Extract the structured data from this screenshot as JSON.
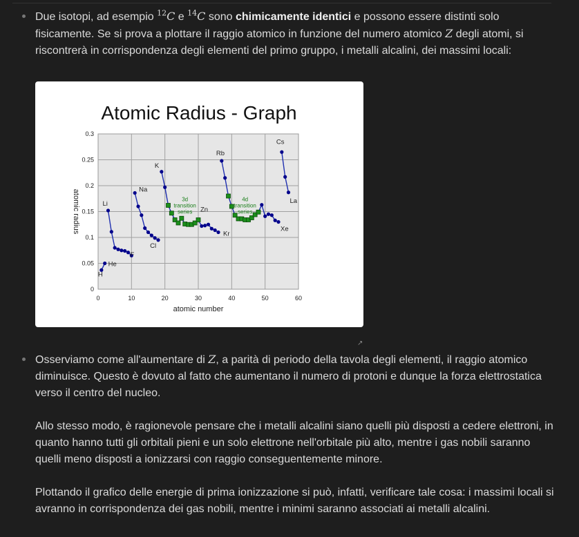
{
  "p1": {
    "t1": "Due isotopi, ad esempio ",
    "iso1_mass": "12",
    "iso1_sym": "C",
    "t2": " e ",
    "iso2_mass": "14",
    "iso2_sym": "C",
    "t3": " sono ",
    "bold": "chimicamente identici",
    "t4": " e possono essere distinti solo fisicamente. Se si prova a plottare il raggio atomico in funzione del numero atomico ",
    "z": "Z",
    "t5": " degli atomi, si riscontrerà in corrispondenza degli elementi del primo gruppo, i metalli alcalini, dei massimi locali:"
  },
  "p2": {
    "t1": "Osserviamo come all'aumentare di ",
    "z": "Z",
    "t2": ", a parità di periodo della tavola degli elementi, il raggio atomico diminuisce. Questo è dovuto al fatto che aumentano il numero di protoni e dunque la forza elettrostatica verso il centro del nucleo."
  },
  "p3": "Allo stesso modo, è ragionevole pensare che i metalli alcalini siano quelli più disposti a cedere elettroni, in quanto hanno tutti gli orbitali pieni e un solo elettrone nell'orbitale più alto, mentre i gas nobili saranno quelli meno disposti a ionizzarsi con raggio conseguentemente minore.",
  "p4": "Plottando il grafico delle energie di prima ionizzazione si può, infatti, verificare tale cosa: i massimi locali si avranno in corrispondenza dei gas nobili, mentre i minimi saranno associati ai metalli alcalini.",
  "resize_icon": "resize-corner-icon",
  "colors": {
    "background": "#1e1e1e",
    "text": "#dadada",
    "series": "#00008b",
    "transition": "#006400"
  },
  "chart_data": {
    "type": "line",
    "title": "Atomic Radius - Graph",
    "xlabel": "atomic number",
    "ylabel": "atomic radius",
    "xlim": [
      0,
      60
    ],
    "ylim": [
      0,
      0.3
    ],
    "xticks": [
      "0",
      "10",
      "20",
      "30",
      "40",
      "50",
      "60"
    ],
    "yticks": [
      "0",
      "0.05",
      "0.1",
      "0.15",
      "0.2",
      "0.25",
      "0.3"
    ],
    "grid": true,
    "series": [
      {
        "points": [
          [
            1,
            0.037
          ],
          [
            2,
            0.05
          ]
        ]
      },
      {
        "points": [
          [
            3,
            0.152
          ],
          [
            4,
            0.111
          ],
          [
            5,
            0.08
          ],
          [
            6,
            0.077
          ],
          [
            7,
            0.075
          ],
          [
            8,
            0.074
          ],
          [
            9,
            0.071
          ],
          [
            10,
            0.065
          ]
        ]
      },
      {
        "points": [
          [
            11,
            0.186
          ],
          [
            12,
            0.16
          ],
          [
            13,
            0.143
          ],
          [
            14,
            0.118
          ],
          [
            15,
            0.11
          ],
          [
            16,
            0.104
          ],
          [
            17,
            0.099
          ],
          [
            18,
            0.095
          ]
        ]
      },
      {
        "points": [
          [
            19,
            0.227
          ],
          [
            20,
            0.197
          ],
          [
            21,
            0.162
          ],
          [
            22,
            0.147
          ],
          [
            23,
            0.134
          ],
          [
            24,
            0.128
          ],
          [
            25,
            0.137
          ],
          [
            26,
            0.126
          ],
          [
            27,
            0.125
          ],
          [
            28,
            0.125
          ],
          [
            29,
            0.128
          ],
          [
            30,
            0.134
          ],
          [
            31,
            0.122
          ],
          [
            32,
            0.123
          ],
          [
            33,
            0.125
          ],
          [
            34,
            0.117
          ],
          [
            35,
            0.114
          ],
          [
            36,
            0.11
          ]
        ]
      },
      {
        "points": [
          [
            37,
            0.248
          ],
          [
            38,
            0.215
          ],
          [
            39,
            0.18
          ],
          [
            40,
            0.16
          ],
          [
            41,
            0.143
          ],
          [
            42,
            0.136
          ],
          [
            43,
            0.136
          ],
          [
            44,
            0.134
          ],
          [
            45,
            0.134
          ],
          [
            46,
            0.138
          ],
          [
            47,
            0.144
          ],
          [
            48,
            0.149
          ],
          [
            49,
            0.163
          ],
          [
            50,
            0.141
          ],
          [
            51,
            0.145
          ],
          [
            52,
            0.143
          ],
          [
            53,
            0.133
          ],
          [
            54,
            0.13
          ]
        ]
      },
      {
        "points": [
          [
            55,
            0.265
          ],
          [
            56,
            0.217
          ],
          [
            57,
            0.187
          ]
        ]
      }
    ],
    "transition_ranges": [
      [
        21,
        30
      ],
      [
        39,
        48
      ]
    ],
    "labels": [
      {
        "text": "H",
        "x": 1,
        "y": 0.037
      },
      {
        "text": "He",
        "x": 2,
        "y": 0.05
      },
      {
        "text": "Li",
        "x": 3,
        "y": 0.152
      },
      {
        "text": "F",
        "x": 9,
        "y": 0.071
      },
      {
        "text": "Na",
        "x": 11,
        "y": 0.186
      },
      {
        "text": "Cl",
        "x": 17,
        "y": 0.099
      },
      {
        "text": "K",
        "x": 19,
        "y": 0.227
      },
      {
        "text": "Zn",
        "x": 30,
        "y": 0.134
      },
      {
        "text": "Kr",
        "x": 36,
        "y": 0.11
      },
      {
        "text": "Rb",
        "x": 37,
        "y": 0.248
      },
      {
        "text": "Cs",
        "x": 55,
        "y": 0.265
      },
      {
        "text": "La",
        "x": 57,
        "y": 0.187
      },
      {
        "text": "Xe",
        "x": 54,
        "y": 0.13
      }
    ],
    "annotations": [
      {
        "lines": [
          "3d",
          "transition",
          "series"
        ],
        "x": 26,
        "y": 0.17
      },
      {
        "lines": [
          "4d",
          "transition",
          "series"
        ],
        "x": 44,
        "y": 0.17
      }
    ]
  }
}
